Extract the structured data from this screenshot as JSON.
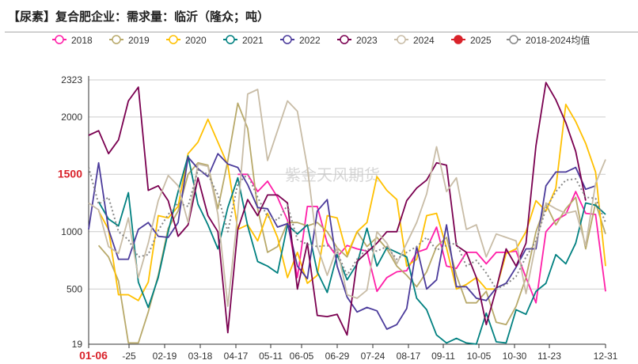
{
  "title": "【尿素】复合肥企业：需求量：临沂（隆众；吨）",
  "watermark": "紫金天风期货",
  "pointer": {
    "y_label": "1500",
    "x_label": "01-06",
    "color": "#d9222a"
  },
  "chart_data": {
    "type": "line",
    "title": "【尿素】复合肥企业：需求量：临沂（隆众；吨）",
    "ylim": [
      19,
      2323
    ],
    "yticks": [
      19,
      500,
      1000,
      1500,
      2000,
      2323
    ],
    "xtick_labels": [
      "01-06",
      "-25",
      "02-19",
      "03-18",
      "04-17",
      "05-11",
      "06-05",
      "06-29",
      "07-24",
      "08-17",
      "09-11",
      "10-05",
      "10-30",
      "11-23",
      "12-31"
    ],
    "grid": true,
    "legend": "top",
    "series": [
      {
        "name": "2018",
        "color": "#ff1fa8",
        "dash": false,
        "values": [
          null,
          null,
          null,
          null,
          null,
          null,
          null,
          null,
          null,
          null,
          null,
          null,
          null,
          null,
          null,
          1500,
          1500,
          1350,
          1440,
          1300,
          1100,
          600,
          1220,
          1220,
          900,
          780,
          880,
          850,
          830,
          480,
          600,
          650,
          660,
          820,
          850,
          1040,
          700,
          680,
          820,
          820,
          720,
          820,
          820,
          830,
          600,
          380,
          1000,
          1100,
          1150,
          1350,
          1160,
          1150,
          480
        ]
      },
      {
        "name": "2019",
        "color": "#b8a96a",
        "dash": false,
        "values": [
          null,
          880,
          780,
          570,
          30,
          30,
          300,
          620,
          1030,
          1180,
          1500,
          1600,
          1580,
          1200,
          1620,
          2120,
          1900,
          1200,
          820,
          870,
          1080,
          1080,
          1050,
          1080,
          1000,
          860,
          780,
          1000,
          870,
          950,
          850,
          700,
          620,
          520,
          650,
          870,
          950,
          620,
          380,
          380,
          480,
          210,
          190,
          350,
          600,
          1000,
          1240,
          1060,
          1200,
          1300,
          850,
          1250,
          980
        ]
      },
      {
        "name": "2020",
        "color": "#ffc000",
        "dash": false,
        "values": [
          null,
          1180,
          1020,
          450,
          450,
          400,
          560,
          1140,
          1120,
          1220,
          1680,
          1780,
          1980,
          1780,
          1580,
          1020,
          1060,
          920,
          1160,
          950,
          600,
          820,
          550,
          620,
          1140,
          1120,
          800,
          1000,
          1080,
          1480,
          1360,
          1280,
          700,
          760,
          1140,
          1160,
          860,
          500,
          540,
          600,
          500,
          500,
          810,
          850,
          1000,
          1270,
          1180,
          1380,
          2110,
          1960,
          1770,
          1520,
          700
        ]
      },
      {
        "name": "2021",
        "color": "#008080",
        "dash": false,
        "values": [
          null,
          1260,
          1110,
          1050,
          1340,
          560,
          340,
          600,
          1000,
          1350,
          1660,
          1240,
          1060,
          850,
          1210,
          1470,
          1050,
          740,
          700,
          640,
          1060,
          980,
          1060,
          650,
          470,
          800,
          580,
          720,
          1030,
          700,
          860,
          820,
          780,
          420,
          320,
          100,
          30,
          70,
          30,
          20,
          290,
          40,
          30,
          320,
          280,
          480,
          550,
          800,
          720,
          900,
          1250,
          1230,
          1150
        ]
      },
      {
        "name": "2022",
        "color": "#4b3b9b",
        "dash": false,
        "values": [
          1020,
          1600,
          1020,
          760,
          760,
          1020,
          1080,
          960,
          950,
          1080,
          1650,
          1550,
          1480,
          1680,
          1590,
          1560,
          1410,
          1210,
          1200,
          1040,
          1070,
          700,
          590,
          1180,
          1280,
          700,
          430,
          300,
          340,
          310,
          150,
          190,
          330,
          870,
          500,
          580,
          1060,
          520,
          520,
          420,
          400,
          510,
          550,
          690,
          850,
          850,
          1400,
          1520,
          1520,
          1560,
          1370,
          1400,
          null
        ]
      },
      {
        "name": "2023",
        "color": "#7a0050",
        "dash": false,
        "values": [
          1840,
          1880,
          1680,
          1800,
          2140,
          2260,
          1360,
          1400,
          1270,
          960,
          1060,
          1470,
          1140,
          1000,
          120,
          1020,
          1280,
          1140,
          1320,
          1320,
          1250,
          500,
          900,
          270,
          260,
          280,
          100,
          740,
          820,
          900,
          1000,
          1000,
          1270,
          1380,
          1450,
          1600,
          1580,
          880,
          820,
          600,
          190,
          500,
          850,
          700,
          900,
          1750,
          2300,
          2150,
          1950,
          1700,
          1270,
          null,
          null
        ]
      },
      {
        "name": "2024",
        "color": "#c8bca6",
        "dash": false,
        "values": [
          1250,
          1190,
          870,
          810,
          1120,
          600,
          900,
          1270,
          1490,
          1400,
          1080,
          1590,
          1570,
          1150,
          350,
          1160,
          2200,
          2240,
          1620,
          1880,
          2140,
          2050,
          1560,
          870,
          620,
          860,
          450,
          420,
          490,
          1000,
          900,
          720,
          900,
          1080,
          1330,
          1740,
          1350,
          1470,
          1020,
          1060,
          780,
          980,
          950,
          920,
          460,
          900,
          1250,
          1200,
          1160,
          1180,
          880,
          1420,
          1630
        ]
      },
      {
        "name": "2025",
        "color": "#d9222a",
        "dash": false,
        "values": []
      },
      {
        "name": "2018-2024均值",
        "color": "#888888",
        "dash": true,
        "values": [
          1560,
          1240,
          1300,
          1000,
          930,
          780,
          800,
          1010,
          1150,
          1250,
          1220,
          1540,
          1500,
          1320,
          1000,
          1420,
          1500,
          1300,
          1130,
          1100,
          1230,
          930,
          890,
          870,
          880,
          820,
          620,
          760,
          850,
          830,
          870,
          760,
          820,
          870,
          950,
          840,
          880,
          900,
          700,
          750,
          640,
          500,
          540,
          610,
          780,
          920,
          1200,
          1350,
          1450,
          1460,
          1300,
          1290,
          1080
        ]
      }
    ]
  }
}
